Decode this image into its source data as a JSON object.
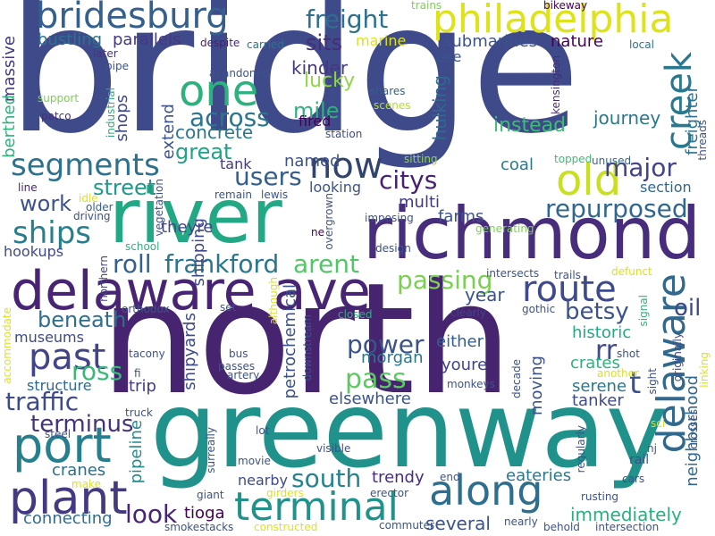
{
  "words": [
    {
      "text": "bridge",
      "color": "#3f4a8a",
      "rot": false
    },
    {
      "text": "north",
      "color": "#46246f",
      "rot": false
    },
    {
      "text": "greenway",
      "color": "#21918c",
      "rot": false
    },
    {
      "text": "river",
      "color": "#22a884",
      "rot": false
    },
    {
      "text": "richmond",
      "color": "#472d7b",
      "rot": false
    },
    {
      "text": "delaware ave",
      "color": "#482475",
      "rot": false
    },
    {
      "text": "bridesburg",
      "color": "#355f8d",
      "rot": false
    },
    {
      "text": "philadelphia",
      "color": "#dde318",
      "rot": false
    },
    {
      "text": "one",
      "color": "#2db27d",
      "rot": false
    },
    {
      "text": "old",
      "color": "#c8e020",
      "rot": false
    },
    {
      "text": "now",
      "color": "#31446b",
      "rot": false
    },
    {
      "text": "port",
      "color": "#277f8e",
      "rot": false
    },
    {
      "text": "plant",
      "color": "#443983",
      "rot": false
    },
    {
      "text": "along",
      "color": "#2e6e8e",
      "rot": false
    },
    {
      "text": "terminal",
      "color": "#21918c",
      "rot": false
    },
    {
      "text": "route",
      "color": "#3e4a89",
      "rot": false
    },
    {
      "text": "creek",
      "color": "#2a788e",
      "rot": true
    },
    {
      "text": "delaware",
      "color": "#31688e",
      "rot": true
    },
    {
      "text": "segments",
      "color": "#2c728e",
      "rot": false
    },
    {
      "text": "ships",
      "color": "#277f8e",
      "rot": false
    },
    {
      "text": "past",
      "color": "#414487",
      "rot": false
    },
    {
      "text": "across",
      "color": "#2a768e",
      "rot": false
    },
    {
      "text": "freight",
      "color": "#2d708e",
      "rot": false
    },
    {
      "text": "sits",
      "color": "#472c7a",
      "rot": false
    },
    {
      "text": "users",
      "color": "#355e8d",
      "rot": false
    },
    {
      "text": "citys",
      "color": "#482173",
      "rot": false
    },
    {
      "text": "repurposed",
      "color": "#31668e",
      "rot": false
    },
    {
      "text": "frankford",
      "color": "#2a768e",
      "rot": false
    },
    {
      "text": "roll",
      "color": "#355f8d",
      "rot": false
    },
    {
      "text": "arent",
      "color": "#54c568",
      "rot": false
    },
    {
      "text": "passing",
      "color": "#7ad151",
      "rot": false
    },
    {
      "text": "beneath",
      "color": "#2e6e8e",
      "rot": false
    },
    {
      "text": "betsy",
      "color": "#3b528b",
      "rot": false
    },
    {
      "text": "power",
      "color": "#3b528b",
      "rot": false
    },
    {
      "text": "pass",
      "color": "#5ec962",
      "rot": false
    },
    {
      "text": "ross",
      "color": "#38b977",
      "rot": false
    },
    {
      "text": "traffic",
      "color": "#3e4a89",
      "rot": false
    },
    {
      "text": "terminus",
      "color": "#46337f",
      "rot": false
    },
    {
      "text": "south",
      "color": "#26828e",
      "rot": false
    },
    {
      "text": "look",
      "color": "#482475",
      "rot": false
    },
    {
      "text": "rr",
      "color": "#3e4a89",
      "rot": false
    },
    {
      "text": "t",
      "color": "#3b528b",
      "rot": false
    },
    {
      "text": "major",
      "color": "#414487",
      "rot": false
    },
    {
      "text": "oil",
      "color": "#3f4a8a",
      "rot": false
    },
    {
      "text": "immediately",
      "color": "#29af7f",
      "rot": false
    },
    {
      "text": "several",
      "color": "#3b528b",
      "rot": false
    },
    {
      "text": "great",
      "color": "#20a386",
      "rot": false
    },
    {
      "text": "work",
      "color": "#3b528b",
      "rot": false
    },
    {
      "text": "street",
      "color": "#1f9a8a",
      "rot": false
    },
    {
      "text": "mile",
      "color": "#2db27d",
      "rot": false
    },
    {
      "text": "concrete",
      "color": "#2a788e",
      "rot": false
    },
    {
      "text": "kinder",
      "color": "#453781",
      "rot": false
    },
    {
      "text": "lucky",
      "color": "#8fd744",
      "rot": false
    },
    {
      "text": "bustling",
      "color": "#2c728e",
      "rot": false
    },
    {
      "text": "parallels",
      "color": "#453882",
      "rot": false
    },
    {
      "text": "submarines",
      "color": "#3b528b",
      "rot": false
    },
    {
      "text": "nature",
      "color": "#440154",
      "rot": false
    },
    {
      "text": "journey",
      "color": "#2a788e",
      "rot": false
    },
    {
      "text": "instead",
      "color": "#3dbc74",
      "rot": false
    },
    {
      "text": "hulking",
      "color": "#31688e",
      "rot": true
    },
    {
      "text": "freighter",
      "color": "#2c728e",
      "rot": true
    },
    {
      "text": "neighborhood",
      "color": "#31688e",
      "rot": true
    },
    {
      "text": "shops",
      "color": "#3f4a8a",
      "rot": true
    },
    {
      "text": "extend",
      "color": "#3b528b",
      "rot": true
    },
    {
      "text": "shipping",
      "color": "#3e4a89",
      "rot": true
    },
    {
      "text": "shipyards",
      "color": "#3e4a89",
      "rot": true
    },
    {
      "text": "pipeline",
      "color": "#238a8d",
      "rot": true
    },
    {
      "text": "petrochemical",
      "color": "#3b528b",
      "rot": true
    },
    {
      "text": "massive",
      "color": "#453781",
      "rot": true
    },
    {
      "text": "berthed",
      "color": "#2db27d",
      "rot": true
    },
    {
      "text": "tank",
      "color": "#443983",
      "rot": false
    },
    {
      "text": "named",
      "color": "#3b528b",
      "rot": false
    },
    {
      "text": "looking",
      "color": "#3b528b",
      "rot": false
    },
    {
      "text": "coal",
      "color": "#2a788e",
      "rot": false
    },
    {
      "text": "section",
      "color": "#31668e",
      "rot": false
    },
    {
      "text": "multi",
      "color": "#443983",
      "rot": false
    },
    {
      "text": "farms",
      "color": "#3b528b",
      "rot": false
    },
    {
      "text": "theyre",
      "color": "#414487",
      "rot": false
    },
    {
      "text": "hookups",
      "color": "#3e4a89",
      "rot": false
    },
    {
      "text": "year",
      "color": "#3b528b",
      "rot": false
    },
    {
      "text": "morgan",
      "color": "#2a788e",
      "rot": false
    },
    {
      "text": "either",
      "color": "#355f8d",
      "rot": false
    },
    {
      "text": "youre",
      "color": "#414487",
      "rot": false
    },
    {
      "text": "historic",
      "color": "#22a884",
      "rot": false
    },
    {
      "text": "crates",
      "color": "#2db27d",
      "rot": false
    },
    {
      "text": "serene",
      "color": "#2a788e",
      "rot": false
    },
    {
      "text": "tanker",
      "color": "#3e4a89",
      "rot": false
    },
    {
      "text": "moving",
      "color": "#3b528b",
      "rot": true
    },
    {
      "text": "elsewhere",
      "color": "#3b528b",
      "rot": false
    },
    {
      "text": "museums",
      "color": "#3e4a89",
      "rot": false
    },
    {
      "text": "structure",
      "color": "#31688e",
      "rot": false
    },
    {
      "text": "trip",
      "color": "#443983",
      "rot": false
    },
    {
      "text": "cranes",
      "color": "#2e6e8e",
      "rot": false
    },
    {
      "text": "connecting",
      "color": "#2e6e8e",
      "rot": false
    },
    {
      "text": "tioga",
      "color": "#440154",
      "rot": false
    },
    {
      "text": "trendy",
      "color": "#472d7b",
      "rot": false
    },
    {
      "text": "eateries",
      "color": "#2a788e",
      "rot": false
    },
    {
      "text": "nearby",
      "color": "#3e4a89",
      "rot": false
    },
    {
      "text": "fired",
      "color": "#440154",
      "rot": false
    },
    {
      "text": "station",
      "color": "#3e4a89",
      "rot": false
    },
    {
      "text": "use",
      "color": "#3b528b",
      "rot": false
    },
    {
      "text": "marine",
      "color": "#dde318",
      "rot": false
    },
    {
      "text": "carried",
      "color": "#2c728e",
      "rot": false
    },
    {
      "text": "despite",
      "color": "#482173",
      "rot": false
    },
    {
      "text": "later",
      "color": "#46337f",
      "rot": false
    },
    {
      "text": "pipe",
      "color": "#3b528b",
      "rot": false
    },
    {
      "text": "abandoned",
      "color": "#3b528b",
      "rot": false
    },
    {
      "text": "support",
      "color": "#7ad151",
      "rot": false
    },
    {
      "text": "patco",
      "color": "#472d7b",
      "rot": false
    },
    {
      "text": "industrial",
      "color": "#29af7f",
      "rot": true
    },
    {
      "text": "shares",
      "color": "#355f8d",
      "rot": false
    },
    {
      "text": "scenes",
      "color": "#b5de2b",
      "rot": false
    },
    {
      "text": "kensington",
      "color": "#472c7a",
      "rot": true
    },
    {
      "text": "trains",
      "color": "#7ad151",
      "rot": false
    },
    {
      "text": "bikeway",
      "color": "#440154",
      "rot": false
    },
    {
      "text": "local",
      "color": "#2c728e",
      "rot": false
    },
    {
      "text": "topped",
      "color": "#3dbc74",
      "rot": false
    },
    {
      "text": "unused",
      "color": "#31688e",
      "rot": false
    },
    {
      "text": "threads",
      "color": "#3b528b",
      "rot": true
    },
    {
      "text": "sitting",
      "color": "#8fd744",
      "rot": false
    },
    {
      "text": "line",
      "color": "#482475",
      "rot": false
    },
    {
      "text": "idle",
      "color": "#dde318",
      "rot": false
    },
    {
      "text": "older",
      "color": "#355e8d",
      "rot": false
    },
    {
      "text": "driving",
      "color": "#3b528b",
      "rot": false
    },
    {
      "text": "remain",
      "color": "#3b528b",
      "rot": false
    },
    {
      "text": "lewis",
      "color": "#3b528b",
      "rot": false
    },
    {
      "text": "vegetation",
      "color": "#3b528b",
      "rot": true
    },
    {
      "text": "overgrown",
      "color": "#3b528b",
      "rot": true
    },
    {
      "text": "ne",
      "color": "#440154",
      "rot": false
    },
    {
      "text": "imposing",
      "color": "#3b528b",
      "rot": false
    },
    {
      "text": "generating",
      "color": "#7ad151",
      "rot": false
    },
    {
      "text": "school",
      "color": "#2db27d",
      "rot": false
    },
    {
      "text": "northern",
      "color": "#414487",
      "rot": true
    },
    {
      "text": "design",
      "color": "#3b528b",
      "rot": false
    },
    {
      "text": "intersects",
      "color": "#3b528b",
      "rot": false
    },
    {
      "text": "trails",
      "color": "#3b528b",
      "rot": false
    },
    {
      "text": "defunct",
      "color": "#dde318",
      "rot": false
    },
    {
      "text": "set",
      "color": "#3b528b",
      "rot": false
    },
    {
      "text": "closed",
      "color": "#2db27d",
      "rot": false
    },
    {
      "text": "clearly",
      "color": "#414487",
      "rot": false
    },
    {
      "text": "gothic",
      "color": "#3b528b",
      "rot": false
    },
    {
      "text": "signal",
      "color": "#2db27d",
      "rot": true
    },
    {
      "text": "originally",
      "color": "#3e4a89",
      "rot": true
    },
    {
      "text": "orthodox",
      "color": "#3b528b",
      "rot": false
    },
    {
      "text": "accommodate",
      "color": "#dde318",
      "rot": true
    },
    {
      "text": "although",
      "color": "#dde318",
      "rot": true
    },
    {
      "text": "downstream",
      "color": "#3b528b",
      "rot": true
    },
    {
      "text": "bus",
      "color": "#3b528b",
      "rot": false
    },
    {
      "text": "passes",
      "color": "#3b528b",
      "rot": false
    },
    {
      "text": "artery",
      "color": "#3b528b",
      "rot": false
    },
    {
      "text": "tacony",
      "color": "#3b528b",
      "rot": false
    },
    {
      "text": "fi",
      "color": "#3b528b",
      "rot": false
    },
    {
      "text": "monkeys",
      "color": "#3b528b",
      "rot": false
    },
    {
      "text": "decade",
      "color": "#3b528b",
      "rot": true
    },
    {
      "text": "another",
      "color": "#dde318",
      "rot": false
    },
    {
      "text": "shot",
      "color": "#3b528b",
      "rot": false
    },
    {
      "text": "sight",
      "color": "#3b528b",
      "rot": true
    },
    {
      "text": "linking",
      "color": "#dde318",
      "rot": true
    },
    {
      "text": "crosses",
      "color": "#3b528b",
      "rot": true
    },
    {
      "text": "truck",
      "color": "#3b528b",
      "rot": false
    },
    {
      "text": "sci",
      "color": "#dde318",
      "rot": false
    },
    {
      "text": "steel",
      "color": "#3b528b",
      "rot": false
    },
    {
      "text": "lot",
      "color": "#3b528b",
      "rot": false
    },
    {
      "text": "surreally",
      "color": "#3b528b",
      "rot": true
    },
    {
      "text": "visible",
      "color": "#3b528b",
      "rot": false
    },
    {
      "text": "movie",
      "color": "#3b528b",
      "rot": false
    },
    {
      "text": "make",
      "color": "#dde318",
      "rot": false
    },
    {
      "text": "end",
      "color": "#3b528b",
      "rot": false
    },
    {
      "text": "regularly",
      "color": "#3b528b",
      "rot": true
    },
    {
      "text": "nj",
      "color": "#3b528b",
      "rot": false
    },
    {
      "text": "rail",
      "color": "#3b528b",
      "rot": false
    },
    {
      "text": "cars",
      "color": "#3b528b",
      "rot": false
    },
    {
      "text": "giant",
      "color": "#3b528b",
      "rot": false
    },
    {
      "text": "girders",
      "color": "#dde318",
      "rot": false
    },
    {
      "text": "erector",
      "color": "#3b528b",
      "rot": false
    },
    {
      "text": "rusting",
      "color": "#3b528b",
      "rot": false
    },
    {
      "text": "smokestacks",
      "color": "#3b528b",
      "rot": false
    },
    {
      "text": "constructed",
      "color": "#dde318",
      "rot": false
    },
    {
      "text": "commuter",
      "color": "#3b528b",
      "rot": false
    },
    {
      "text": "nearly",
      "color": "#3b528b",
      "rot": false
    },
    {
      "text": "behold",
      "color": "#3b528b",
      "rot": false
    },
    {
      "text": "intersection",
      "color": "#3b528b",
      "rot": false
    }
  ]
}
